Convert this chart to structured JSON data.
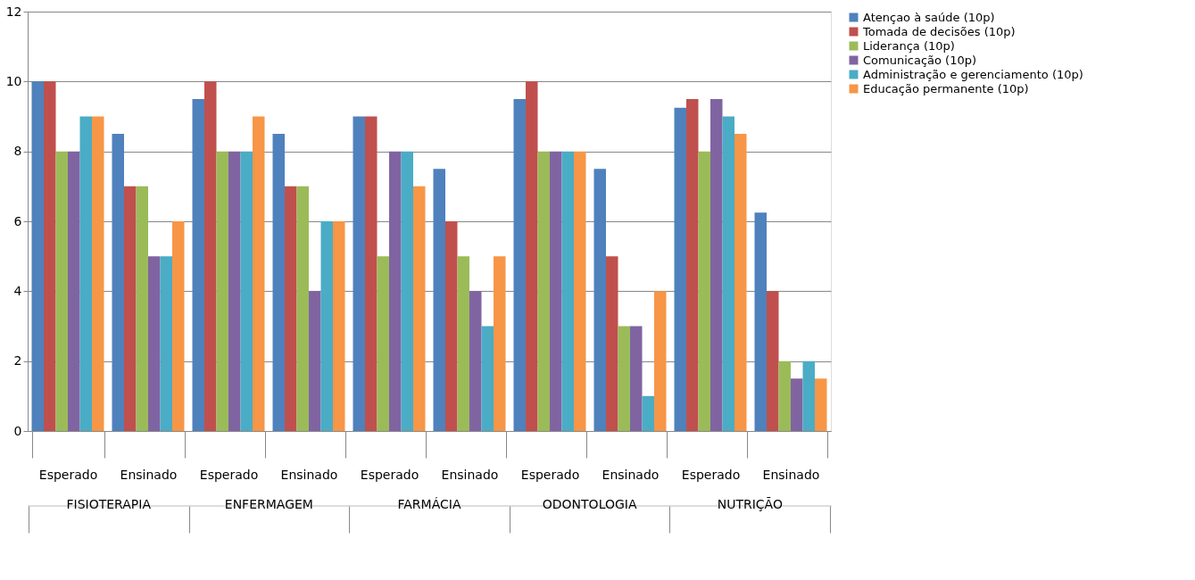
{
  "chart_data": {
    "type": "bar",
    "categories": [
      "Esperado",
      "Ensinado",
      "Esperado",
      "Ensinado",
      "Esperado",
      "Ensinado",
      "Esperado",
      "Ensinado",
      "Esperado",
      "Ensinado"
    ],
    "series": [
      {
        "name": "Atençao à saúde (10p)",
        "color": "#4f81bd",
        "values": [
          10,
          8.5,
          9.5,
          8.5,
          9,
          7.5,
          9.5,
          7.5,
          9.25,
          6.25
        ]
      },
      {
        "name": "Tomada de decisões (10p)",
        "color": "#c0504d",
        "values": [
          10,
          7,
          10,
          7,
          9,
          6,
          10,
          5,
          9.5,
          4
        ]
      },
      {
        "name": "Liderança (10p)",
        "color": "#9bbb59",
        "values": [
          8,
          7,
          8,
          7,
          5,
          5,
          8,
          3,
          8,
          2
        ]
      },
      {
        "name": "Comunicação (10p)",
        "color": "#8064a2",
        "values": [
          8,
          5,
          8,
          4,
          8,
          4,
          8,
          3,
          9.5,
          1.5
        ]
      },
      {
        "name": "Administração e gerenciamento  (10p)",
        "color": "#4bacc6",
        "values": [
          9,
          5,
          8,
          6,
          8,
          3,
          8,
          1,
          9,
          2
        ]
      },
      {
        "name": "Educação permanente (10p)",
        "color": "#f79646",
        "values": [
          9,
          6,
          9,
          6,
          7,
          5,
          8,
          4,
          8.5,
          1.5
        ]
      }
    ],
    "annotations": [
      "FISIOTERAPIA",
      "ENFERMAGEM",
      "FARMÁCIA",
      "ODONTOLOGIA",
      "NUTRIÇÃO"
    ],
    "ylim": [
      0,
      12
    ],
    "yticks": [
      0,
      2,
      4,
      6,
      8,
      10,
      12
    ],
    "grid": "y",
    "legend": "right"
  }
}
